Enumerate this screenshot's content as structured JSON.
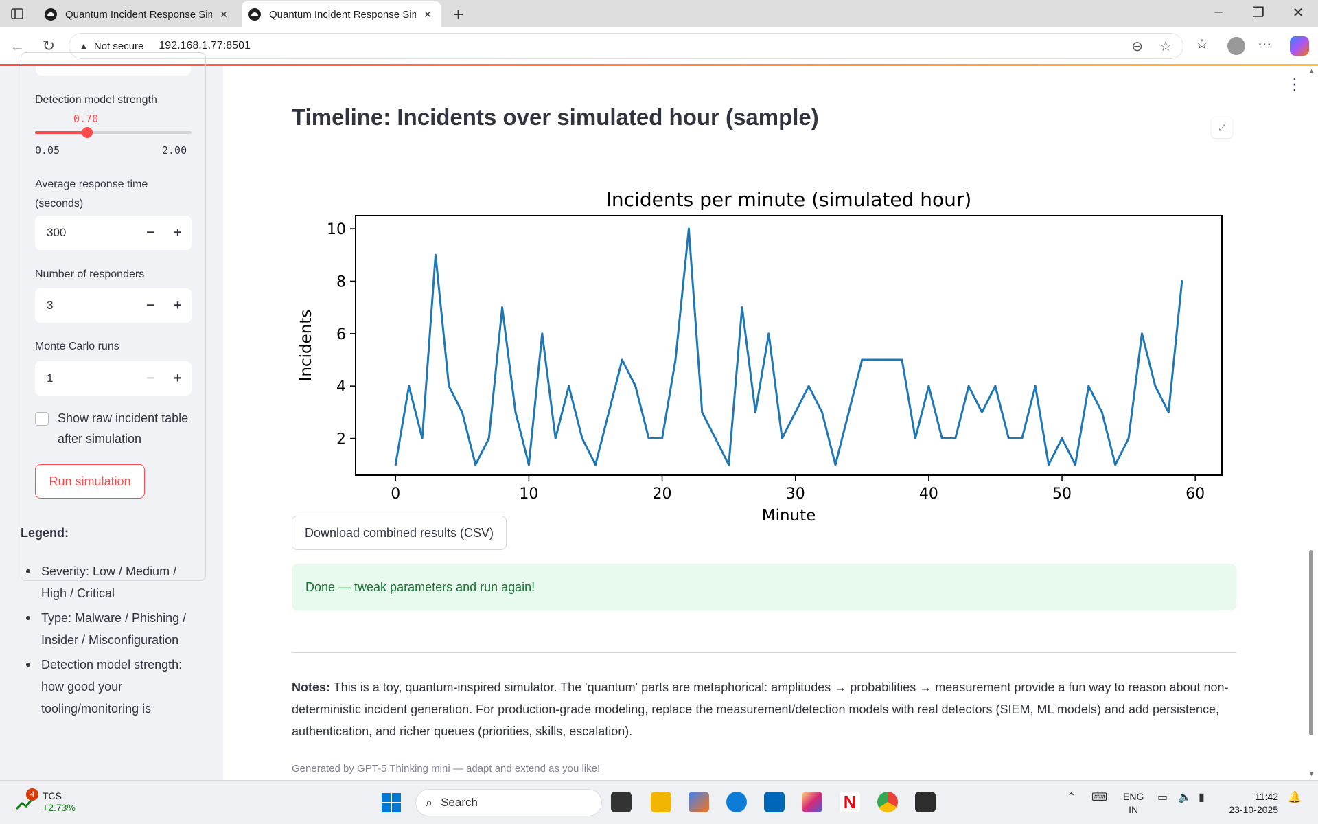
{
  "browser": {
    "tabs": [
      {
        "title": "Quantum Incident Response Simu"
      },
      {
        "title": "Quantum Incident Response Simu"
      }
    ],
    "security_label": "Not secure",
    "url": "192.168.1.77:8501"
  },
  "sidebar": {
    "slider": {
      "label": "Detection model strength",
      "value_text": "0.70",
      "value": 0.7,
      "min_text": "0.05",
      "max_text": "2.00",
      "min": 0.05,
      "max": 2.0
    },
    "response_time": {
      "label": "Average response time (seconds)",
      "value": "300"
    },
    "responders": {
      "label": "Number of responders",
      "value": "3"
    },
    "monte_carlo": {
      "label": "Monte Carlo runs",
      "value": "1"
    },
    "steppers": {
      "minus": "−",
      "plus": "+"
    },
    "checkbox": {
      "label": "Show raw incident table after simulation",
      "checked": false
    },
    "run_button": "Run simulation",
    "legend": {
      "title": "Legend:",
      "items": [
        "Severity: Low / Medium / High / Critical",
        "Type: Malware / Phishing / Insider / Misconfiguration",
        "Detection model strength: how good your tooling/monitoring is"
      ]
    }
  },
  "main": {
    "title": "Timeline: Incidents over simulated hour (sample)",
    "download_button": "Download combined results (CSV)",
    "success_message": "Done — tweak parameters and run again!",
    "notes_label": "Notes:",
    "notes_text": " This is a toy, quantum-inspired simulator. The 'quantum' parts are metaphorical: amplitudes → probabilities → measurement provide a fun way to reason about non-deterministic incident generation. For production-grade modeling, replace the measurement/detection models with real detectors (SIEM, ML models) and add persistence, authentication, and richer queues (priorities, skills, escalation).",
    "caption": "Generated by GPT-5 Thinking mini — adapt and extend as you like!"
  },
  "chart_data": {
    "type": "line",
    "title": "Incidents per minute (simulated hour)",
    "xlabel": "Minute",
    "ylabel": "Incidents",
    "xlim": [
      -3,
      62
    ],
    "ylim": [
      0.6,
      10.5
    ],
    "xticks": [
      0,
      10,
      20,
      30,
      40,
      50,
      60
    ],
    "yticks": [
      2,
      4,
      6,
      8,
      10
    ],
    "color": "#1f77b4",
    "x": [
      0,
      1,
      2,
      3,
      4,
      5,
      6,
      7,
      8,
      9,
      10,
      11,
      12,
      13,
      14,
      15,
      16,
      17,
      18,
      19,
      20,
      21,
      22,
      23,
      24,
      25,
      26,
      27,
      28,
      29,
      30,
      31,
      32,
      33,
      34,
      35,
      36,
      37,
      38,
      39,
      40,
      41,
      42,
      43,
      44,
      45,
      46,
      47,
      48,
      49,
      50,
      51,
      52,
      53,
      54,
      55,
      56,
      57,
      58,
      59
    ],
    "values": [
      1,
      4,
      2,
      9,
      4,
      3,
      1,
      2,
      7,
      3,
      1,
      6,
      2,
      4,
      2,
      1,
      3,
      5,
      4,
      2,
      2,
      5,
      10,
      3,
      2,
      1,
      7,
      3,
      6,
      2,
      3,
      4,
      3,
      1,
      3,
      5,
      5,
      5,
      5,
      2,
      4,
      2,
      2,
      4,
      3,
      4,
      2,
      2,
      4,
      1,
      2,
      1,
      4,
      3,
      1,
      2,
      6,
      4,
      3,
      8
    ]
  },
  "taskbar": {
    "stock_name": "TCS",
    "stock_change": "+2.73%",
    "stock_badge": "4",
    "search_label": "Search",
    "lang_top": "ENG",
    "lang_bottom": "IN",
    "time": "11:42",
    "date": "23-10-2025"
  }
}
